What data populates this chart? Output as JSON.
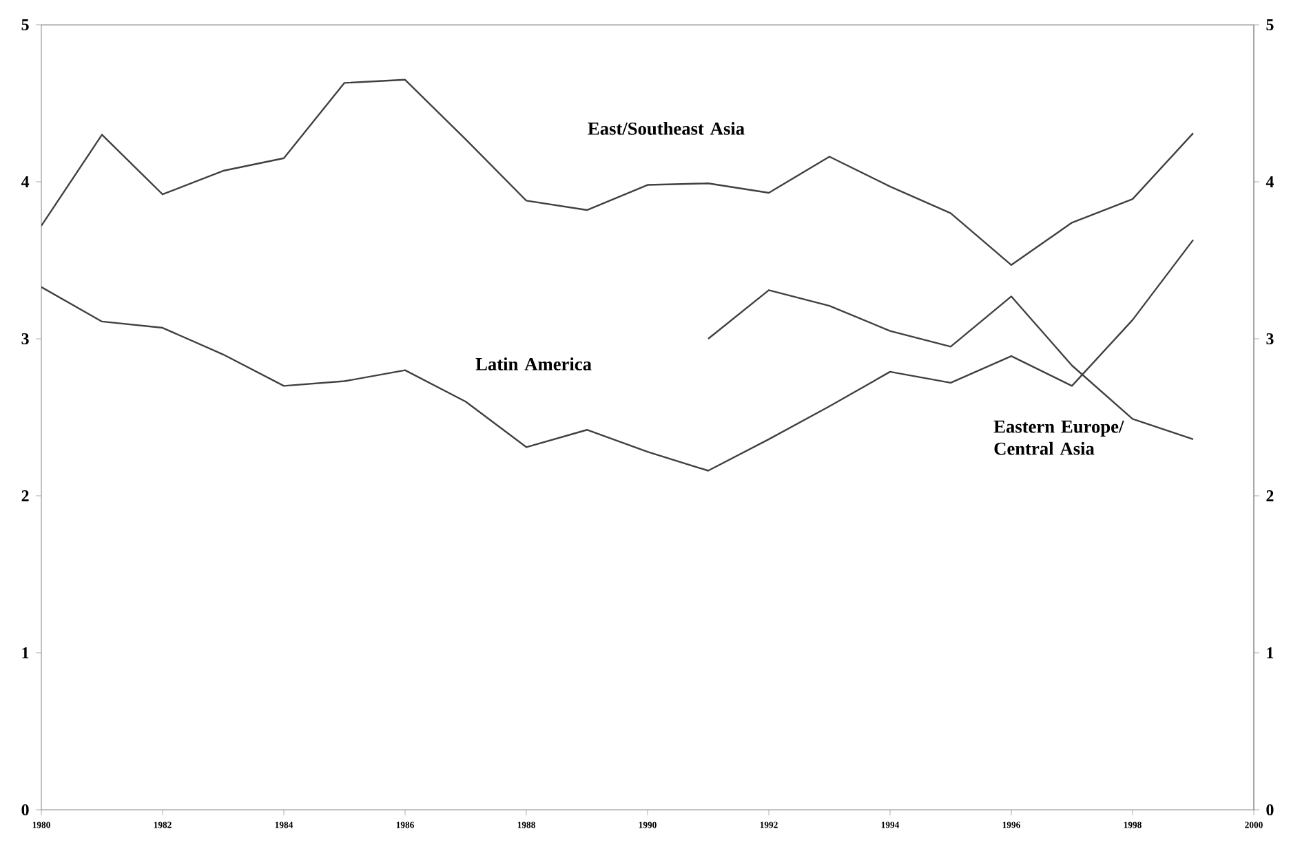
{
  "chart_data": {
    "type": "line",
    "x": [
      1980,
      1981,
      1982,
      1983,
      1984,
      1985,
      1986,
      1987,
      1988,
      1989,
      1990,
      1991,
      1992,
      1993,
      1994,
      1995,
      1996,
      1997,
      1998,
      1999
    ],
    "series": [
      {
        "name": "East/Southeast Asia",
        "color": "#404040",
        "values": [
          3.72,
          4.3,
          3.92,
          4.07,
          4.15,
          4.63,
          4.65,
          4.27,
          3.88,
          3.82,
          3.98,
          3.99,
          3.93,
          4.16,
          3.97,
          3.8,
          3.47,
          3.74,
          3.89,
          4.31
        ]
      },
      {
        "name": "Latin America",
        "color": "#404040",
        "values": [
          3.33,
          3.11,
          3.07,
          2.9,
          2.7,
          2.73,
          2.8,
          2.6,
          2.31,
          2.42,
          2.28,
          2.16,
          2.36,
          2.57,
          2.79,
          2.72,
          2.89,
          2.7,
          3.12,
          3.63
        ]
      },
      {
        "name": "Eastern Europe/ Central Asia",
        "color": "#404040",
        "values": [
          null,
          null,
          null,
          null,
          null,
          null,
          null,
          null,
          null,
          null,
          null,
          3.0,
          3.31,
          3.21,
          3.05,
          2.95,
          3.27,
          2.83,
          2.49,
          2.36
        ]
      }
    ],
    "xlim": [
      1980,
      2000
    ],
    "xticks": [
      1980,
      1982,
      1984,
      1986,
      1988,
      1990,
      1992,
      1994,
      1996,
      1998,
      2000
    ],
    "ylim": [
      0,
      5
    ],
    "yticks": [
      0,
      1,
      2,
      3,
      4,
      5
    ],
    "y2lim": [
      0,
      5
    ],
    "y2ticks": [
      0,
      1,
      2,
      3,
      4,
      5
    ],
    "grid": false,
    "legend": false,
    "marker": "none",
    "line_style": "solid"
  }
}
